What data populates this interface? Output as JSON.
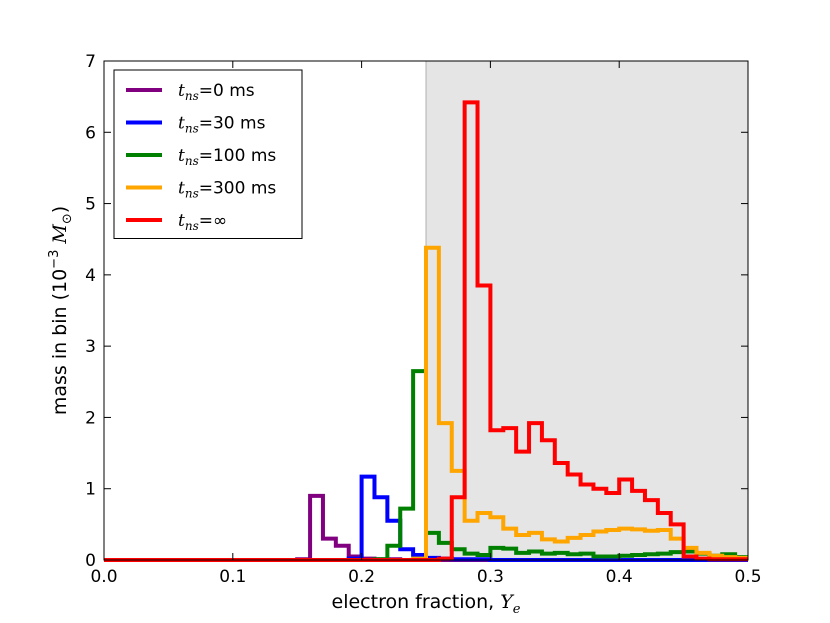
{
  "chart_data": {
    "type": "line",
    "xlabel": "electron fraction, Y_e",
    "xlabel_parts": {
      "text": "electron fraction, ",
      "var": "Y",
      "sub": "e"
    },
    "ylabel": "mass in bin (10^-3 M_⊙)",
    "ylabel_parts": {
      "text": "mass in bin (10",
      "exp": "−3",
      "mid": " M",
      "sub": "⊙",
      "close": ")"
    },
    "xlim": [
      0.0,
      0.5
    ],
    "ylim": [
      0,
      7
    ],
    "x_ticks": [
      "0.0",
      "0.1",
      "0.2",
      "0.3",
      "0.4",
      "0.5"
    ],
    "y_ticks": [
      "0",
      "1",
      "2",
      "3",
      "4",
      "5",
      "6",
      "7"
    ],
    "shaded_region": {
      "x_start": 0.25,
      "x_end": 0.5,
      "color": "#e5e5e5"
    },
    "legend_position": "top-left",
    "bin_width": 0.01,
    "series": [
      {
        "name": "t_ns=0 ms",
        "legend": {
          "sub": "ns",
          "value": "=0 ms"
        },
        "color": "#800080",
        "x": [
          0.0,
          0.01,
          0.02,
          0.03,
          0.04,
          0.05,
          0.06,
          0.07,
          0.08,
          0.09,
          0.1,
          0.11,
          0.12,
          0.13,
          0.14,
          0.15,
          0.16,
          0.17,
          0.18,
          0.19,
          0.2,
          0.21,
          0.22,
          0.23,
          0.24,
          0.25,
          0.26,
          0.27,
          0.28,
          0.29,
          0.3,
          0.31,
          0.32,
          0.33,
          0.34,
          0.35,
          0.36,
          0.37,
          0.38,
          0.39,
          0.4,
          0.41,
          0.42,
          0.43,
          0.44,
          0.45,
          0.46,
          0.47,
          0.48,
          0.49
        ],
        "values": [
          0,
          0,
          0,
          0,
          0,
          0,
          0,
          0,
          0,
          0,
          0,
          0,
          0,
          0,
          0,
          0.01,
          0.9,
          0.3,
          0.2,
          0.05,
          0.02,
          0.01,
          0.01,
          0,
          0,
          0,
          0,
          0,
          0,
          0,
          0,
          0,
          0,
          0,
          0,
          0,
          0,
          0,
          0,
          0,
          0,
          0,
          0,
          0,
          0,
          0,
          0,
          0,
          0,
          0
        ]
      },
      {
        "name": "t_ns=30 ms",
        "legend": {
          "sub": "ns",
          "value": "=30 ms"
        },
        "color": "#0000ff",
        "x": [
          0.0,
          0.01,
          0.02,
          0.03,
          0.04,
          0.05,
          0.06,
          0.07,
          0.08,
          0.09,
          0.1,
          0.11,
          0.12,
          0.13,
          0.14,
          0.15,
          0.16,
          0.17,
          0.18,
          0.19,
          0.2,
          0.21,
          0.22,
          0.23,
          0.24,
          0.25,
          0.26,
          0.27,
          0.28,
          0.29,
          0.3,
          0.31,
          0.32,
          0.33,
          0.34,
          0.35,
          0.36,
          0.37,
          0.38,
          0.39,
          0.4,
          0.41,
          0.42,
          0.43,
          0.44,
          0.45,
          0.46,
          0.47,
          0.48,
          0.49
        ],
        "values": [
          0,
          0,
          0,
          0,
          0,
          0,
          0,
          0,
          0,
          0,
          0,
          0,
          0,
          0,
          0,
          0,
          0,
          0,
          0,
          0.02,
          1.17,
          0.88,
          0.55,
          0.15,
          0.07,
          0.03,
          0.02,
          0.01,
          0.01,
          0.01,
          0,
          0,
          0,
          0,
          0,
          0,
          0,
          0,
          0,
          0,
          0,
          0,
          0,
          0,
          0,
          0,
          0,
          0,
          0,
          0
        ]
      },
      {
        "name": "t_ns=100 ms",
        "legend": {
          "sub": "ns",
          "value": "=100 ms"
        },
        "color": "#008000",
        "x": [
          0.0,
          0.01,
          0.02,
          0.03,
          0.04,
          0.05,
          0.06,
          0.07,
          0.08,
          0.09,
          0.1,
          0.11,
          0.12,
          0.13,
          0.14,
          0.15,
          0.16,
          0.17,
          0.18,
          0.19,
          0.2,
          0.21,
          0.22,
          0.23,
          0.24,
          0.25,
          0.26,
          0.27,
          0.28,
          0.29,
          0.3,
          0.31,
          0.32,
          0.33,
          0.34,
          0.35,
          0.36,
          0.37,
          0.38,
          0.39,
          0.4,
          0.41,
          0.42,
          0.43,
          0.44,
          0.45,
          0.46,
          0.47,
          0.48,
          0.49
        ],
        "values": [
          0,
          0,
          0,
          0,
          0,
          0,
          0,
          0,
          0,
          0,
          0,
          0,
          0,
          0,
          0,
          0,
          0,
          0,
          0,
          0,
          0,
          0.01,
          0.2,
          0.72,
          2.65,
          0.38,
          0.24,
          0.15,
          0.09,
          0.07,
          0.17,
          0.16,
          0.1,
          0.12,
          0.09,
          0.1,
          0.08,
          0.09,
          0.05,
          0.05,
          0.06,
          0.07,
          0.08,
          0.09,
          0.11,
          0.12,
          0.09,
          0.06,
          0.08,
          0.04
        ]
      },
      {
        "name": "t_ns=300 ms",
        "legend": {
          "sub": "ns",
          "value": "=300 ms"
        },
        "color": "#ffa500",
        "x": [
          0.0,
          0.01,
          0.02,
          0.03,
          0.04,
          0.05,
          0.06,
          0.07,
          0.08,
          0.09,
          0.1,
          0.11,
          0.12,
          0.13,
          0.14,
          0.15,
          0.16,
          0.17,
          0.18,
          0.19,
          0.2,
          0.21,
          0.22,
          0.23,
          0.24,
          0.25,
          0.26,
          0.27,
          0.28,
          0.29,
          0.3,
          0.31,
          0.32,
          0.33,
          0.34,
          0.35,
          0.36,
          0.37,
          0.38,
          0.39,
          0.4,
          0.41,
          0.42,
          0.43,
          0.44,
          0.45,
          0.46,
          0.47,
          0.48,
          0.49
        ],
        "values": [
          0,
          0,
          0,
          0,
          0,
          0,
          0,
          0,
          0,
          0,
          0,
          0,
          0,
          0,
          0,
          0,
          0,
          0,
          0,
          0,
          0,
          0,
          0,
          0,
          0.02,
          4.38,
          1.92,
          1.25,
          0.55,
          0.66,
          0.6,
          0.44,
          0.35,
          0.38,
          0.29,
          0.26,
          0.31,
          0.35,
          0.4,
          0.42,
          0.44,
          0.43,
          0.41,
          0.42,
          0.3,
          0.17,
          0.1,
          0.06,
          0.04,
          0.03
        ]
      },
      {
        "name": "t_ns=∞",
        "legend": {
          "sub": "ns",
          "value": "=∞"
        },
        "color": "#ff0000",
        "x": [
          0.0,
          0.01,
          0.02,
          0.03,
          0.04,
          0.05,
          0.06,
          0.07,
          0.08,
          0.09,
          0.1,
          0.11,
          0.12,
          0.13,
          0.14,
          0.15,
          0.16,
          0.17,
          0.18,
          0.19,
          0.2,
          0.21,
          0.22,
          0.23,
          0.24,
          0.25,
          0.26,
          0.27,
          0.28,
          0.29,
          0.3,
          0.31,
          0.32,
          0.33,
          0.34,
          0.35,
          0.36,
          0.37,
          0.38,
          0.39,
          0.4,
          0.41,
          0.42,
          0.43,
          0.44,
          0.45,
          0.46,
          0.47,
          0.48,
          0.49
        ],
        "values": [
          0,
          0,
          0,
          0,
          0,
          0,
          0,
          0,
          0,
          0,
          0,
          0,
          0,
          0,
          0,
          0,
          0,
          0,
          0,
          0,
          0,
          0,
          0,
          0,
          0,
          0,
          0.02,
          0.88,
          6.42,
          3.85,
          1.82,
          1.85,
          1.52,
          1.92,
          1.68,
          1.36,
          1.2,
          1.06,
          1.0,
          0.94,
          1.13,
          0.97,
          0.84,
          0.66,
          0.5,
          0.05,
          0.02,
          0.01,
          0.01,
          0.01
        ]
      }
    ]
  }
}
